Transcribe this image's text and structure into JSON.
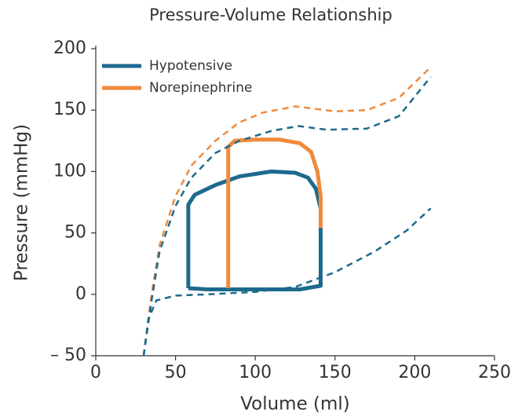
{
  "chart_data": {
    "type": "line",
    "title": "Pressure-Volume Relationship",
    "x_label": "Volume (ml)",
    "y_label": "Pressure (mmHg)",
    "xlim": [
      0,
      250
    ],
    "xticks": [
      0,
      50,
      100,
      150,
      200,
      250
    ],
    "ylim": [
      -50,
      200
    ],
    "yticks": [
      {
        "value": -50,
        "label": "– 50"
      },
      0,
      50,
      100,
      150,
      200
    ],
    "legend": "top-left",
    "series": [
      {
        "name": "Hypotensive",
        "color": "#1d6a8e",
        "dashed": false,
        "x": [
          58,
          58,
          62,
          75,
          90,
          110,
          125,
          133,
          138,
          141,
          141,
          141,
          128,
          100,
          70,
          58
        ],
        "values": [
          5,
          73,
          81,
          89,
          96,
          100,
          99,
          95,
          86,
          70,
          55,
          7,
          4,
          4,
          4,
          5
        ]
      },
      {
        "name": "Norepinephrine",
        "color": "#f08a3c",
        "dashed": false,
        "x": [
          83,
          83,
          87,
          100,
          115,
          128,
          135,
          139,
          141,
          141
        ],
        "values": [
          5,
          120,
          125,
          126,
          126,
          123,
          116,
          100,
          80,
          54
        ]
      },
      {
        "color": "#f08a3c",
        "dashed": true,
        "x": [
          30,
          35,
          40,
          50,
          60,
          75,
          90,
          105,
          125,
          150,
          170,
          190,
          210
        ],
        "values": [
          -50,
          0,
          40,
          80,
          105,
          125,
          140,
          148,
          153,
          149,
          150,
          160,
          185
        ]
      },
      {
        "color": "#1d6a8e",
        "dashed": true,
        "x": [
          30,
          35,
          40,
          50,
          60,
          75,
          90,
          110,
          127,
          145,
          170,
          190,
          210
        ],
        "values": [
          -50,
          -5,
          35,
          72,
          95,
          115,
          125,
          133,
          137,
          134,
          135,
          145,
          177
        ]
      },
      {
        "color": "#1d6a8e",
        "dashed": true,
        "x": [
          30,
          33,
          38,
          50,
          70,
          100,
          125,
          150,
          175,
          195,
          210
        ],
        "values": [
          -50,
          -20,
          -5,
          -1,
          0,
          2,
          6,
          18,
          35,
          52,
          70
        ]
      }
    ]
  }
}
